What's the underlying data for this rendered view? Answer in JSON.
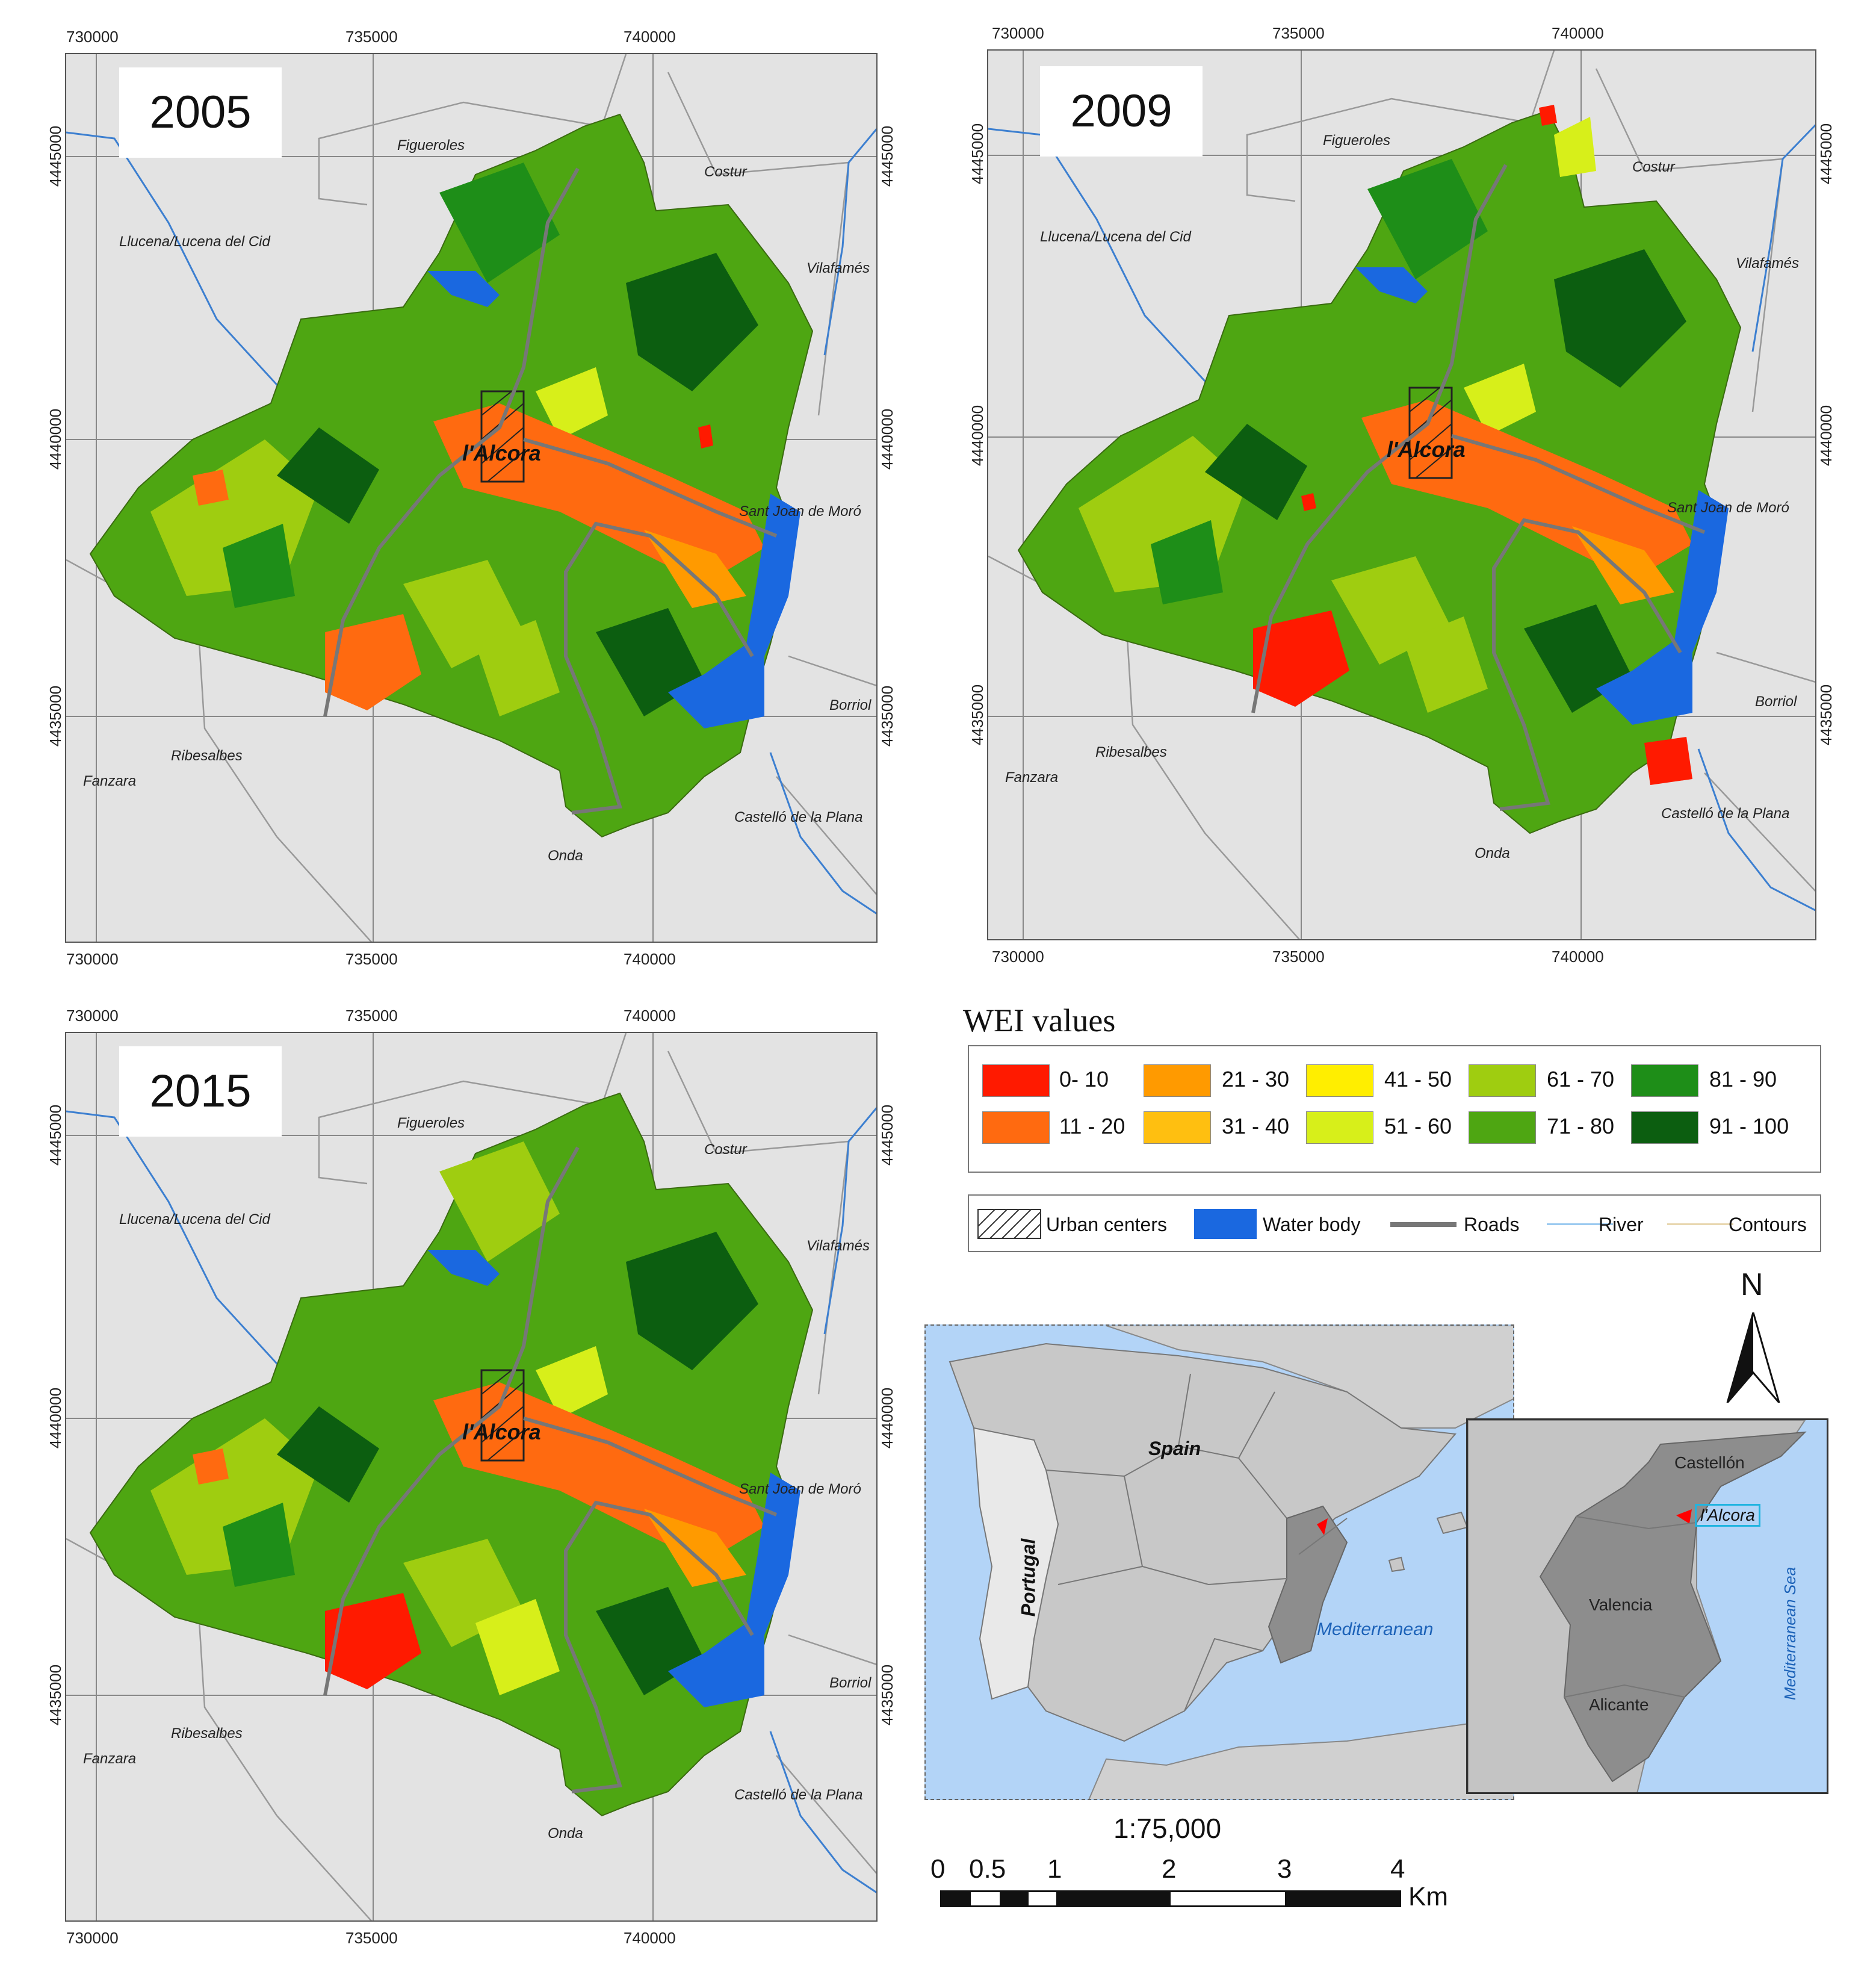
{
  "maps": [
    {
      "year": "2005"
    },
    {
      "year": "2009"
    },
    {
      "year": "2015"
    }
  ],
  "axis_ticks": {
    "x": [
      "730000",
      "735000",
      "740000"
    ],
    "y": [
      "4445000",
      "4440000",
      "4435000"
    ]
  },
  "place_names": {
    "figueroles": "Figueroles",
    "costur": "Costur",
    "llucena": "Llucena/Lucena del Cid",
    "vilafames": "Vilafamés",
    "sant_joan": "Sant Joan de Moró",
    "borriol": "Borriol",
    "castello": "Castelló de la Plana",
    "onda": "Onda",
    "ribesalbes": "Ribesalbes",
    "fanzara": "Fanzara",
    "alcora": "l'Alcora"
  },
  "legend": {
    "title": "WEI values",
    "classes": [
      {
        "label": "0- 10",
        "color": "#ff1a00"
      },
      {
        "label": "11 - 20",
        "color": "#ff6a10"
      },
      {
        "label": "21 - 30",
        "color": "#ff9a00"
      },
      {
        "label": "31 - 40",
        "color": "#ffbf10"
      },
      {
        "label": "41 - 50",
        "color": "#ffee00"
      },
      {
        "label": "51 - 60",
        "color": "#d7ef1a"
      },
      {
        "label": "61 - 70",
        "color": "#9fcd10"
      },
      {
        "label": "71 - 80",
        "color": "#4ea612"
      },
      {
        "label": "81 - 90",
        "color": "#1e8e18"
      },
      {
        "label": "91 - 100",
        "color": "#0c5e10"
      }
    ]
  },
  "symbols": {
    "urban": "Urban centers",
    "water": "Water body",
    "roads": "Roads",
    "river": "River",
    "contours": "Contours"
  },
  "inset": {
    "spain": "Spain",
    "portugal": "Portugal",
    "mediterranean": "Mediterranean",
    "castellon": "Castellón",
    "alcora": "l'Alcora",
    "valencia": "Valencia",
    "alicante": "Alicante",
    "med_sea": "Mediterranean Sea"
  },
  "north": "N",
  "scale": {
    "ratio": "1:75,000",
    "labels": [
      "0",
      "0.5",
      "1",
      "2",
      "3",
      "4"
    ],
    "unit": "Km"
  }
}
